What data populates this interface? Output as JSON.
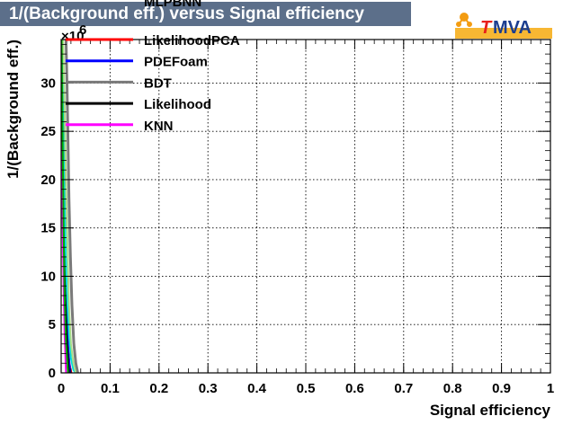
{
  "title": "1/(Background eff.) versus Signal efficiency",
  "logo": {
    "text_t": "T",
    "text_rest": "MVA",
    "icon": "tmva-logo-icon"
  },
  "colors": {
    "title_bg": "#5c6f8a",
    "frame": "#000000",
    "grid": "#000000"
  },
  "chart_data": {
    "type": "line",
    "title": "1/(Background eff.) versus Signal efficiency",
    "xlabel": "Signal efficiency",
    "ylabel": "1/(Background eff.)",
    "y_multiplier_label": "×10",
    "y_multiplier_exp": "6",
    "xlim": [
      0,
      1
    ],
    "ylim": [
      0,
      34.5
    ],
    "x_ticks": [
      "0",
      "0.1",
      "0.2",
      "0.3",
      "0.4",
      "0.5",
      "0.6",
      "0.7",
      "0.8",
      "0.9",
      "1"
    ],
    "x_tick_values": [
      0,
      0.1,
      0.2,
      0.3,
      0.4,
      0.5,
      0.6,
      0.7,
      0.8,
      0.9,
      1.0
    ],
    "y_ticks": [
      "0",
      "5",
      "10",
      "15",
      "20",
      "25",
      "30"
    ],
    "y_tick_values": [
      0,
      5,
      10,
      15,
      20,
      25,
      30
    ],
    "grid": true,
    "legend_placement": "top-left",
    "legend_clipped_label": "MLPBNN",
    "series": [
      {
        "name": "LikelihoodPCA",
        "color": "#ff0000",
        "width": 3,
        "x": [
          0.0,
          0.002,
          0.004,
          0.006,
          0.008,
          0.01,
          0.013,
          0.016,
          0.02
        ],
        "y": [
          34.5,
          30.0,
          24.0,
          18.0,
          12.0,
          7.0,
          3.0,
          1.0,
          0.0
        ]
      },
      {
        "name": "PDEFoam",
        "color": "#0000ff",
        "width": 3,
        "x": [
          0.0,
          0.002,
          0.004,
          0.006,
          0.008,
          0.011,
          0.014,
          0.018
        ],
        "y": [
          34.5,
          28.0,
          21.0,
          15.0,
          9.5,
          5.0,
          2.0,
          0.0
        ]
      },
      {
        "name": "BDT",
        "color": "#7a7a7a",
        "width": 3,
        "x": [
          0.01,
          0.012,
          0.014,
          0.016,
          0.019,
          0.022,
          0.026,
          0.03,
          0.034
        ],
        "y": [
          34.5,
          30.0,
          24.0,
          18.0,
          12.0,
          7.0,
          3.0,
          1.0,
          0.0
        ]
      },
      {
        "name": "Likelihood",
        "color": "#000000",
        "width": 3,
        "x": [
          0.0,
          0.002,
          0.004,
          0.006,
          0.008,
          0.011,
          0.015
        ],
        "y": [
          34.5,
          27.0,
          19.0,
          12.0,
          7.0,
          3.0,
          0.0
        ]
      },
      {
        "name": "KNN",
        "color": "#ff00ff",
        "width": 2,
        "x": [
          0.0,
          0.001,
          0.003,
          0.005,
          0.007,
          0.01
        ],
        "y": [
          34.5,
          25.0,
          16.0,
          9.0,
          4.0,
          0.0
        ]
      },
      {
        "color": "#00dddd",
        "width": 2,
        "x": [
          0.0,
          0.002,
          0.004,
          0.006,
          0.009,
          0.012,
          0.016,
          0.02,
          0.025,
          0.03
        ],
        "y": [
          34.5,
          32.0,
          26.0,
          20.0,
          13.0,
          8.0,
          4.0,
          1.5,
          0.3,
          0.0
        ]
      },
      {
        "color": "#aadd88",
        "width": 2,
        "x": [
          0.004,
          0.007,
          0.01,
          0.013,
          0.016,
          0.02,
          0.025,
          0.03
        ],
        "y": [
          34.5,
          28.0,
          20.0,
          13.0,
          7.0,
          3.0,
          1.0,
          0.0
        ]
      },
      {
        "color": "#00aa00",
        "width": 2,
        "x": [
          0.001,
          0.003,
          0.005,
          0.007,
          0.01,
          0.014
        ],
        "y": [
          34.5,
          24.0,
          15.0,
          8.0,
          3.0,
          0.0
        ]
      }
    ]
  }
}
